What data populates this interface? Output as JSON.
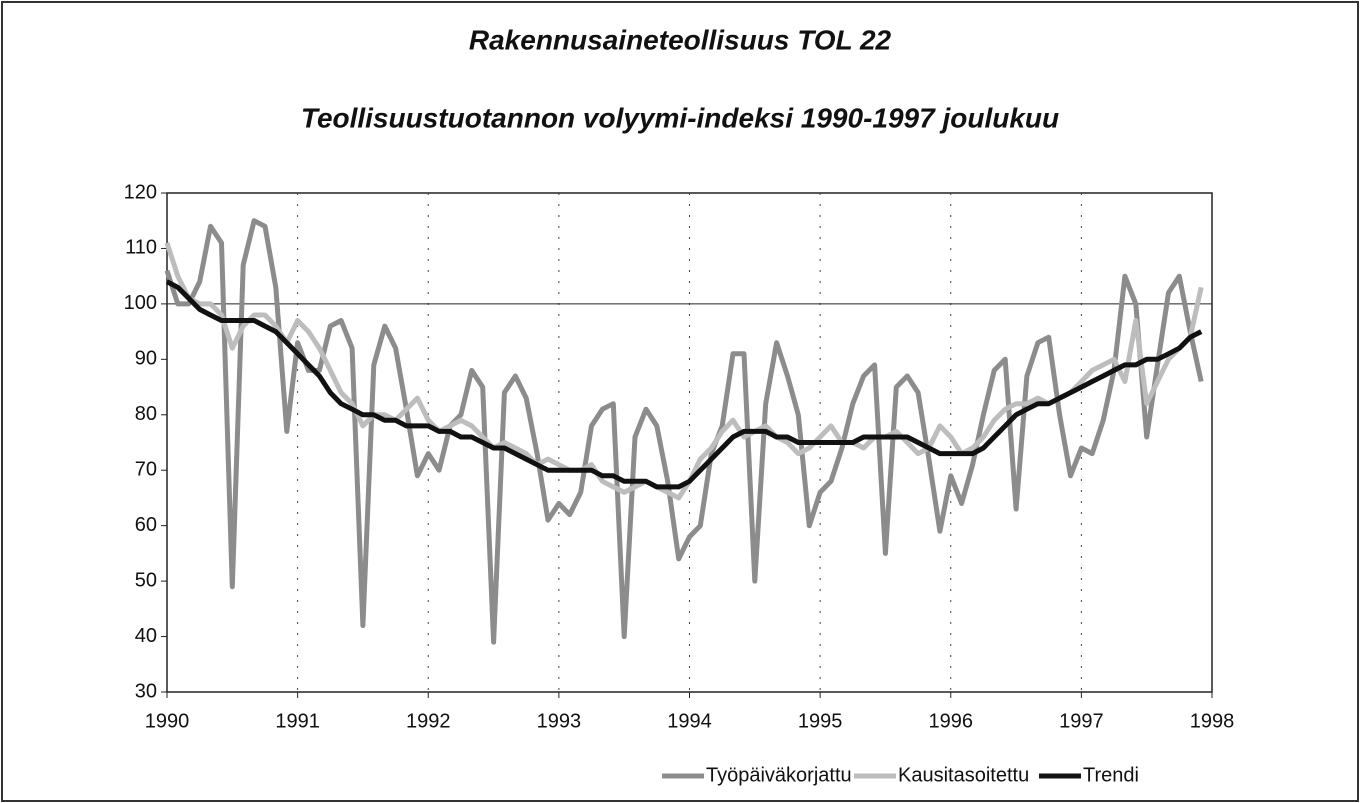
{
  "chart_data": {
    "type": "line",
    "title": "Rakennusaineteollisuus TOL 22",
    "subtitle": "Teollisuustuotannon volyymi-indeksi 1990-1997 joulukuu",
    "x": [
      1990,
      1990.083,
      1990.167,
      1990.25,
      1990.333,
      1990.417,
      1990.5,
      1990.583,
      1990.667,
      1990.75,
      1990.833,
      1990.917,
      1991,
      1991.083,
      1991.167,
      1991.25,
      1991.333,
      1991.417,
      1991.5,
      1991.583,
      1991.667,
      1991.75,
      1991.833,
      1991.917,
      1992,
      1992.083,
      1992.167,
      1992.25,
      1992.333,
      1992.417,
      1992.5,
      1992.583,
      1992.667,
      1992.75,
      1992.833,
      1992.917,
      1993,
      1993.083,
      1993.167,
      1993.25,
      1993.333,
      1993.417,
      1993.5,
      1993.583,
      1993.667,
      1993.75,
      1993.833,
      1993.917,
      1994,
      1994.083,
      1994.167,
      1994.25,
      1994.333,
      1994.417,
      1994.5,
      1994.583,
      1994.667,
      1994.75,
      1994.833,
      1994.917,
      1995,
      1995.083,
      1995.167,
      1995.25,
      1995.333,
      1995.417,
      1995.5,
      1995.583,
      1995.667,
      1995.75,
      1995.833,
      1995.917,
      1996,
      1996.083,
      1996.167,
      1996.25,
      1996.333,
      1996.417,
      1996.5,
      1996.583,
      1996.667,
      1996.75,
      1996.833,
      1996.917,
      1997,
      1997.083,
      1997.167,
      1997.25,
      1997.333,
      1997.417,
      1997.5,
      1997.583,
      1997.667,
      1997.75,
      1997.833,
      1997.917
    ],
    "series": [
      {
        "name": "Työpäiväkorjattu",
        "color": "#8c8c8c",
        "values": [
          106,
          100,
          100,
          104,
          114,
          111,
          49,
          107,
          115,
          114,
          103,
          77,
          93,
          88,
          88,
          96,
          97,
          92,
          42,
          89,
          96,
          92,
          81,
          69,
          73,
          70,
          78,
          80,
          88,
          85,
          39,
          84,
          87,
          83,
          73,
          61,
          64,
          62,
          66,
          78,
          81,
          82,
          40,
          76,
          81,
          78,
          68,
          54,
          58,
          60,
          73,
          78,
          91,
          91,
          50,
          82,
          93,
          87,
          80,
          60,
          66,
          68,
          74,
          82,
          87,
          89,
          55,
          85,
          87,
          84,
          72,
          59,
          69,
          64,
          71,
          80,
          88,
          90,
          63,
          87,
          93,
          94,
          80,
          69,
          74,
          73,
          79,
          88,
          105,
          100,
          76,
          89,
          102,
          105,
          95,
          86
        ]
      },
      {
        "name": "Kausitasoitettu",
        "color": "#bdbdbd",
        "values": [
          111,
          105,
          101,
          100,
          100,
          98,
          92,
          96,
          98,
          98,
          96,
          93,
          97,
          95,
          92,
          88,
          84,
          82,
          78,
          80,
          80,
          79,
          81,
          83,
          79,
          77,
          78,
          79,
          78,
          76,
          74,
          75,
          74,
          73,
          71,
          72,
          71,
          70,
          70,
          71,
          68,
          67,
          66,
          67,
          68,
          67,
          66,
          65,
          68,
          72,
          74,
          77,
          79,
          76,
          77,
          78,
          76,
          75,
          73,
          74,
          76,
          78,
          75,
          75,
          74,
          76,
          76,
          77,
          75,
          73,
          74,
          78,
          76,
          73,
          74,
          76,
          79,
          81,
          82,
          82,
          83,
          82,
          83,
          84,
          86,
          88,
          89,
          90,
          86,
          97,
          82,
          86,
          90,
          92,
          94,
          103
        ]
      },
      {
        "name": "Trendi",
        "color": "#111111",
        "values": [
          104,
          103,
          101,
          99,
          98,
          97,
          97,
          97,
          97,
          96,
          95,
          93,
          91,
          89,
          87,
          84,
          82,
          81,
          80,
          80,
          79,
          79,
          78,
          78,
          78,
          77,
          77,
          76,
          76,
          75,
          74,
          74,
          73,
          72,
          71,
          70,
          70,
          70,
          70,
          70,
          69,
          69,
          68,
          68,
          68,
          67,
          67,
          67,
          68,
          70,
          72,
          74,
          76,
          77,
          77,
          77,
          76,
          76,
          75,
          75,
          75,
          75,
          75,
          75,
          76,
          76,
          76,
          76,
          76,
          75,
          74,
          73,
          73,
          73,
          73,
          74,
          76,
          78,
          80,
          81,
          82,
          82,
          83,
          84,
          85,
          86,
          87,
          88,
          89,
          89,
          90,
          90,
          91,
          92,
          94,
          95
        ]
      }
    ],
    "xlim": [
      1990,
      1998
    ],
    "xticks": [
      1990,
      1991,
      1992,
      1993,
      1994,
      1995,
      1996,
      1997,
      1998
    ],
    "ylim": [
      30,
      120
    ],
    "yticks": [
      30,
      40,
      50,
      60,
      70,
      80,
      90,
      100,
      110,
      120
    ],
    "reference_y": 100,
    "grid": "x",
    "legend": "bottom-right"
  }
}
